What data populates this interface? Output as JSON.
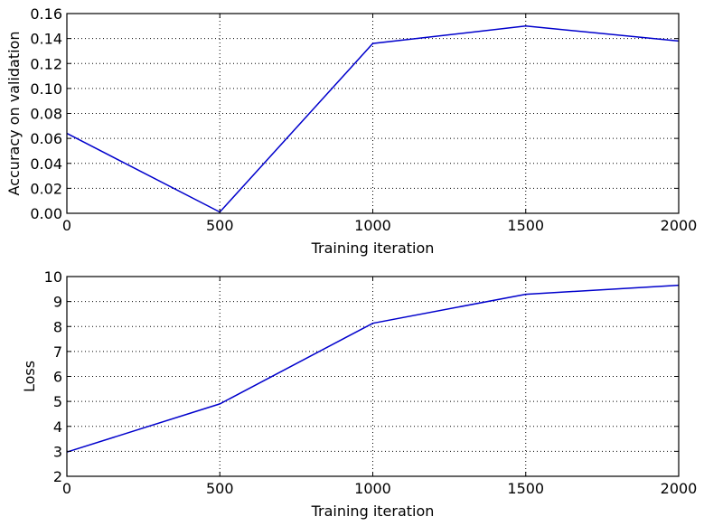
{
  "chart_data": [
    {
      "type": "line",
      "xlabel": "Training iteration",
      "ylabel": "Accuracy on validation",
      "xlim": [
        0,
        2000
      ],
      "ylim": [
        0,
        0.16
      ],
      "xticks": [
        "0",
        "500",
        "1000",
        "1500",
        "2000"
      ],
      "yticks": [
        "0.00",
        "0.02",
        "0.04",
        "0.06",
        "0.08",
        "0.10",
        "0.12",
        "0.14",
        "0.16"
      ],
      "grid": true,
      "color": "#0000cc",
      "series": [
        {
          "x": [
            0,
            500,
            1000,
            1500,
            2000
          ],
          "values": [
            0.064,
            0.001,
            0.136,
            0.15,
            0.138
          ]
        }
      ]
    },
    {
      "type": "line",
      "xlabel": "Training iteration",
      "ylabel": "Loss",
      "xlim": [
        0,
        2000
      ],
      "ylim": [
        2,
        10
      ],
      "xticks": [
        "0",
        "500",
        "1000",
        "1500",
        "2000"
      ],
      "yticks": [
        "2",
        "3",
        "4",
        "5",
        "6",
        "7",
        "8",
        "9",
        "10"
      ],
      "grid": true,
      "color": "#0000cc",
      "series": [
        {
          "x": [
            0,
            500,
            1000,
            1500,
            2000
          ],
          "values": [
            2.97,
            4.9,
            8.13,
            9.29,
            9.65
          ]
        }
      ]
    }
  ]
}
